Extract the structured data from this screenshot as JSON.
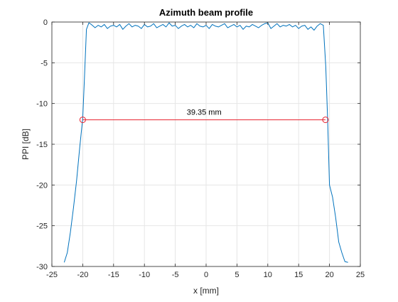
{
  "chart_data": {
    "type": "line",
    "title": "Azimuth beam profile",
    "xlabel": "x [mm]",
    "ylabel": "PPI [dB]",
    "xlim": [
      -25,
      25
    ],
    "ylim": [
      -30,
      0
    ],
    "xticks": [
      -25,
      -20,
      -15,
      -10,
      -5,
      0,
      5,
      10,
      15,
      20,
      25
    ],
    "yticks": [
      0,
      -5,
      -10,
      -15,
      -20,
      -25,
      -30
    ],
    "grid": true,
    "series": [
      {
        "color": "#0072BD",
        "x": [
          -23,
          -22.5,
          -22,
          -21.5,
          -21,
          -20.5,
          -20,
          -19.7,
          -19.4,
          -19,
          -18.6,
          -18,
          -17.5,
          -17,
          -16.5,
          -16,
          -15.5,
          -15,
          -14.5,
          -14,
          -13.5,
          -13,
          -12.5,
          -12,
          -11.5,
          -11,
          -10.5,
          -10,
          -9.5,
          -9,
          -8.5,
          -8,
          -7.5,
          -7,
          -6.5,
          -6,
          -5.5,
          -5,
          -4.5,
          -4,
          -3.5,
          -3,
          -2.5,
          -2,
          -1.5,
          -1,
          -0.5,
          0,
          0.5,
          1,
          1.5,
          2,
          2.5,
          3,
          3.5,
          4,
          4.5,
          5,
          5.5,
          6,
          6.5,
          7,
          7.5,
          8,
          8.5,
          9,
          9.5,
          10,
          10.5,
          11,
          11.5,
          12,
          12.5,
          13,
          13.5,
          14,
          14.5,
          15,
          15.5,
          16,
          16.5,
          17,
          17.5,
          18,
          18.5,
          19,
          19.4,
          19.7,
          20,
          20.5,
          21,
          21.5,
          22,
          22.5,
          23
        ],
        "y": [
          -29.5,
          -28.3,
          -25.8,
          -22.8,
          -19.5,
          -15.5,
          -11.8,
          -6.5,
          -0.9,
          -0.1,
          -0.3,
          -0.7,
          -0.4,
          -0.6,
          -0.3,
          -0.8,
          -0.5,
          -0.4,
          -0.6,
          -0.3,
          -0.9,
          -0.5,
          -0.2,
          -0.6,
          -0.4,
          -0.5,
          -0.8,
          -0.3,
          -0.6,
          -0.5,
          -0.2,
          -0.7,
          -0.5,
          -0.3,
          -0.6,
          -0.1,
          -0.5,
          -0.4,
          -0.8,
          -0.5,
          -0.3,
          -0.6,
          -0.4,
          -0.7,
          -0.2,
          -0.5,
          -0.6,
          -0.4,
          -0.8,
          -0.3,
          -0.5,
          -0.6,
          -0.4,
          -0.2,
          -0.7,
          -0.5,
          -0.3,
          -0.6,
          -0.4,
          -0.9,
          -0.5,
          -0.6,
          -0.3,
          -0.5,
          -0.7,
          -0.4,
          -0.2,
          -0.1,
          -0.8,
          -0.5,
          -0.2,
          -0.6,
          -0.4,
          -0.5,
          -0.3,
          -0.6,
          -0.4,
          -0.8,
          -0.5,
          -0.4,
          -0.9,
          -0.6,
          -1.0,
          -0.5,
          -0.2,
          -0.4,
          -5.5,
          -12.0,
          -20.0,
          -21.5,
          -24.0,
          -27.0,
          -28.3,
          -29.4,
          -29.5
        ]
      }
    ],
    "annotation": {
      "text": "39.35 mm",
      "color": "#E8212E",
      "x1": -20,
      "x2": 19.35,
      "y": -12
    }
  }
}
